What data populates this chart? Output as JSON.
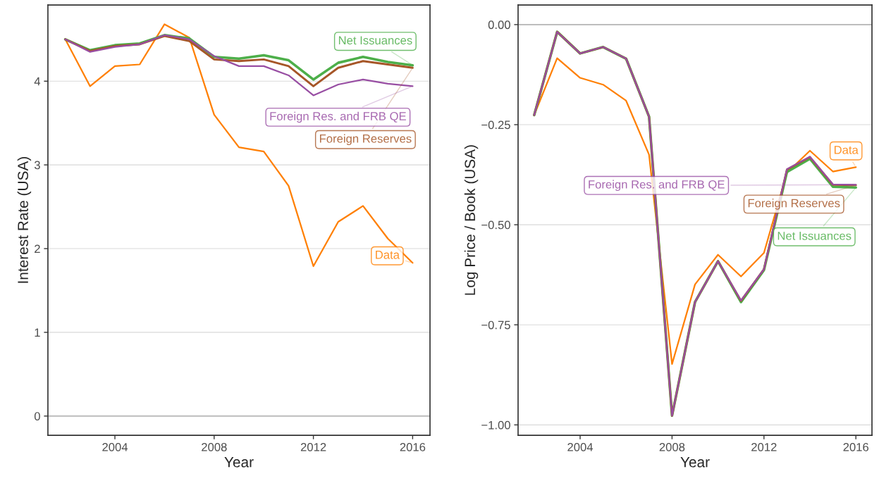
{
  "chart_data": [
    {
      "type": "line",
      "legend": "right",
      "xlabel": "Year",
      "ylabel": "Interest Rate (USA)",
      "x": [
        2002,
        2003,
        2004,
        2005,
        2006,
        2007,
        2008,
        2009,
        2010,
        2011,
        2012,
        2013,
        2014,
        2015,
        2016
      ],
      "xlim": [
        2001.3,
        2016.7
      ],
      "xticks": [
        2004,
        2008,
        2012,
        2016
      ],
      "ylim": [
        -0.23,
        4.91
      ],
      "yticks": [
        0,
        1,
        2,
        3,
        4
      ],
      "grid": "y",
      "ref_lines": [
        {
          "axis": "y",
          "value": 0,
          "color": "#bdbdbd"
        }
      ],
      "series": [
        {
          "name": "Data",
          "color": "#ff7f00",
          "values": [
            4.5,
            3.94,
            4.18,
            4.2,
            4.68,
            4.52,
            3.6,
            3.21,
            3.16,
            2.75,
            1.79,
            2.32,
            2.51,
            2.12,
            1.83
          ]
        },
        {
          "name": "Net Issuances",
          "color": "#4daf4a",
          "values": [
            4.5,
            4.37,
            4.43,
            4.45,
            4.55,
            4.51,
            4.29,
            4.27,
            4.31,
            4.25,
            4.02,
            4.22,
            4.29,
            4.23,
            4.19
          ]
        },
        {
          "name": "Foreign Reserves",
          "color": "#a65628",
          "values": [
            4.5,
            4.36,
            4.42,
            4.44,
            4.54,
            4.48,
            4.26,
            4.24,
            4.26,
            4.18,
            3.94,
            4.16,
            4.24,
            4.2,
            4.16
          ]
        },
        {
          "name": "Foreign Res. and FRB QE",
          "color": "#984ea3",
          "values": [
            4.5,
            4.35,
            4.41,
            4.44,
            4.55,
            4.5,
            4.3,
            4.18,
            4.18,
            4.07,
            3.83,
            3.96,
            4.02,
            3.97,
            3.94
          ]
        }
      ]
    },
    {
      "type": "line",
      "legend": "right",
      "xlabel": "Year",
      "ylabel": "Log Price / Book (USA)",
      "x": [
        2002,
        2003,
        2004,
        2005,
        2006,
        2007,
        2008,
        2009,
        2010,
        2011,
        2012,
        2013,
        2014,
        2015,
        2016
      ],
      "xlim": [
        2001.3,
        2016.7
      ],
      "xticks": [
        2004,
        2008,
        2012,
        2016
      ],
      "ylim": [
        -1.026,
        0.049
      ],
      "yticks": [
        {
          "value": -1.0,
          "label": "−1.00"
        },
        {
          "value": -0.75,
          "label": "−0.75"
        },
        {
          "value": -0.5,
          "label": "−0.50"
        },
        {
          "value": -0.25,
          "label": "−0.25"
        },
        {
          "value": 0,
          "label": "0.00"
        }
      ],
      "grid": "y",
      "ref_lines": [
        {
          "axis": "y",
          "value": 0,
          "color": "#bdbdbd"
        }
      ],
      "series": [
        {
          "name": "Data",
          "color": "#ff7f00",
          "values": [
            -0.226,
            -0.084,
            -0.133,
            -0.15,
            -0.19,
            -0.325,
            -0.848,
            -0.649,
            -0.575,
            -0.629,
            -0.57,
            -0.37,
            -0.315,
            -0.367,
            -0.356
          ]
        },
        {
          "name": "Net Issuances",
          "color": "#4daf4a",
          "values": [
            -0.226,
            -0.018,
            -0.072,
            -0.056,
            -0.085,
            -0.23,
            -0.977,
            -0.693,
            -0.591,
            -0.693,
            -0.613,
            -0.368,
            -0.335,
            -0.405,
            -0.407
          ]
        },
        {
          "name": "Foreign Reserves",
          "color": "#a65628",
          "values": [
            -0.226,
            -0.018,
            -0.072,
            -0.056,
            -0.085,
            -0.23,
            -0.977,
            -0.693,
            -0.591,
            -0.69,
            -0.611,
            -0.362,
            -0.331,
            -0.4,
            -0.401
          ]
        },
        {
          "name": "Foreign Res. and FRB QE",
          "color": "#984ea3",
          "values": [
            -0.226,
            -0.018,
            -0.072,
            -0.056,
            -0.085,
            -0.23,
            -0.977,
            -0.693,
            -0.591,
            -0.689,
            -0.611,
            -0.361,
            -0.33,
            -0.399,
            -0.4
          ]
        }
      ]
    }
  ]
}
